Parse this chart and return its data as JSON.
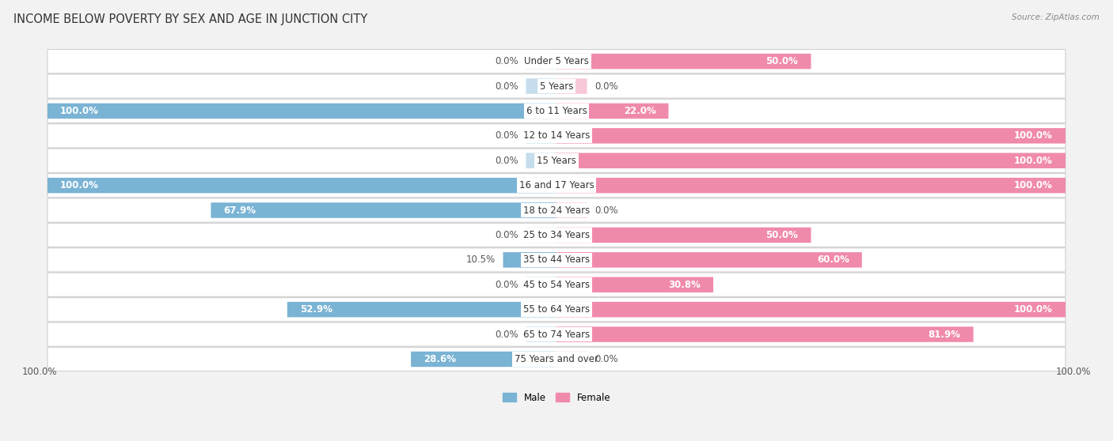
{
  "title": "INCOME BELOW POVERTY BY SEX AND AGE IN JUNCTION CITY",
  "source": "Source: ZipAtlas.com",
  "categories": [
    "Under 5 Years",
    "5 Years",
    "6 to 11 Years",
    "12 to 14 Years",
    "15 Years",
    "16 and 17 Years",
    "18 to 24 Years",
    "25 to 34 Years",
    "35 to 44 Years",
    "45 to 54 Years",
    "55 to 64 Years",
    "65 to 74 Years",
    "75 Years and over"
  ],
  "male": [
    0.0,
    0.0,
    100.0,
    0.0,
    0.0,
    100.0,
    67.9,
    0.0,
    10.5,
    0.0,
    52.9,
    0.0,
    28.6
  ],
  "female": [
    50.0,
    0.0,
    22.0,
    100.0,
    100.0,
    100.0,
    0.0,
    50.0,
    60.0,
    30.8,
    100.0,
    81.9,
    0.0
  ],
  "male_color": "#7ab3d4",
  "female_color": "#f08aaa",
  "male_color_light": "#c5dded",
  "female_color_light": "#f7c8d8",
  "bg_color": "#f2f2f2",
  "max_val": 100.0,
  "title_fontsize": 10.5,
  "label_fontsize": 8.5,
  "tick_fontsize": 8.5
}
